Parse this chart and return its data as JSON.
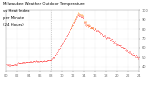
{
  "title": "Milwaukee Weather Outdoor Temperature vs Heat Index per Minute (24 Hours)",
  "bg_color": "#ffffff",
  "plot_bg_color": "#ffffff",
  "grid_color": "#cccccc",
  "temp_color": "#ff0000",
  "heat_color": "#ff8800",
  "ylim": [
    35,
    100
  ],
  "xlim": [
    0,
    1440
  ],
  "title_color": "#000000",
  "vline_x": 480,
  "vline_color": "#aaaaaa",
  "title_fontsize": 3.0,
  "tick_fontsize": 2.5,
  "tick_color": "#666666",
  "spine_color": "#999999"
}
